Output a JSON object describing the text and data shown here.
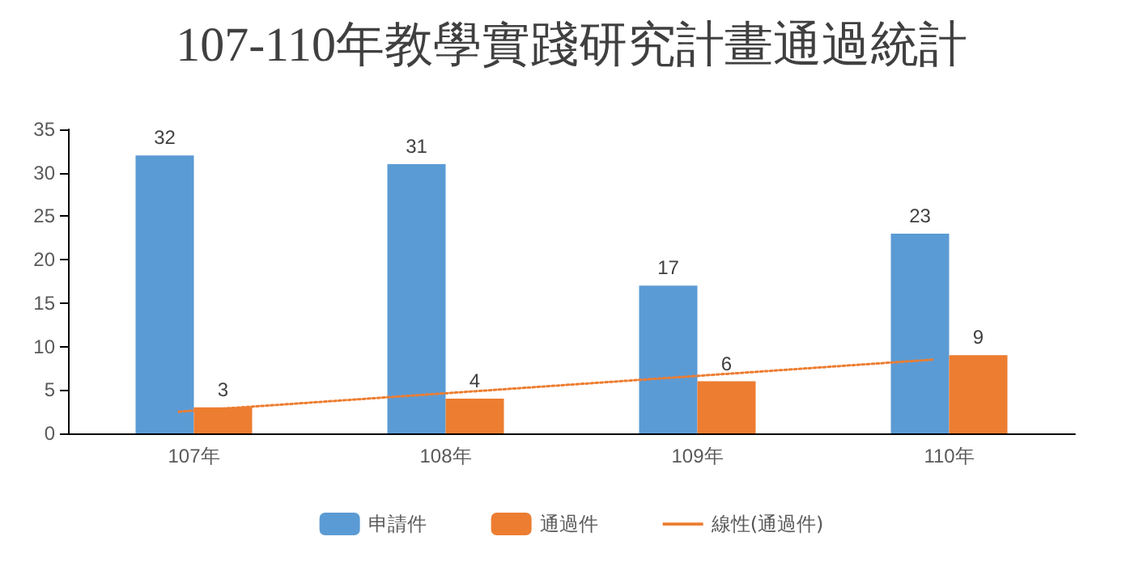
{
  "chart_data": {
    "type": "bar",
    "title": "107-110年教學實踐研究計畫通過統計",
    "categories": [
      "107年",
      "108年",
      "109年",
      "110年"
    ],
    "series": [
      {
        "name": "申請件",
        "color": "#5b9bd5",
        "values": [
          32,
          31,
          17,
          23
        ],
        "value_labels": [
          "32",
          "31",
          "17",
          "23"
        ]
      },
      {
        "name": "通過件",
        "color": "#ed7d31",
        "values": [
          3,
          4,
          6,
          9
        ],
        "value_labels": [
          "3",
          "4",
          "6",
          "9"
        ]
      },
      {
        "name": "線性(通過件)",
        "type": "line",
        "color": "#ed7d31",
        "x": [
          "107年",
          "108年",
          "109年",
          "110年"
        ],
        "values": [
          2.5,
          4.5,
          6.5,
          8.5
        ],
        "line_style": "dotted",
        "marker": "none"
      }
    ],
    "ylim": [
      0,
      35
    ],
    "yticks": [
      0,
      5,
      10,
      15,
      20,
      25,
      30,
      35
    ],
    "grid": false,
    "legend": "bottom"
  }
}
